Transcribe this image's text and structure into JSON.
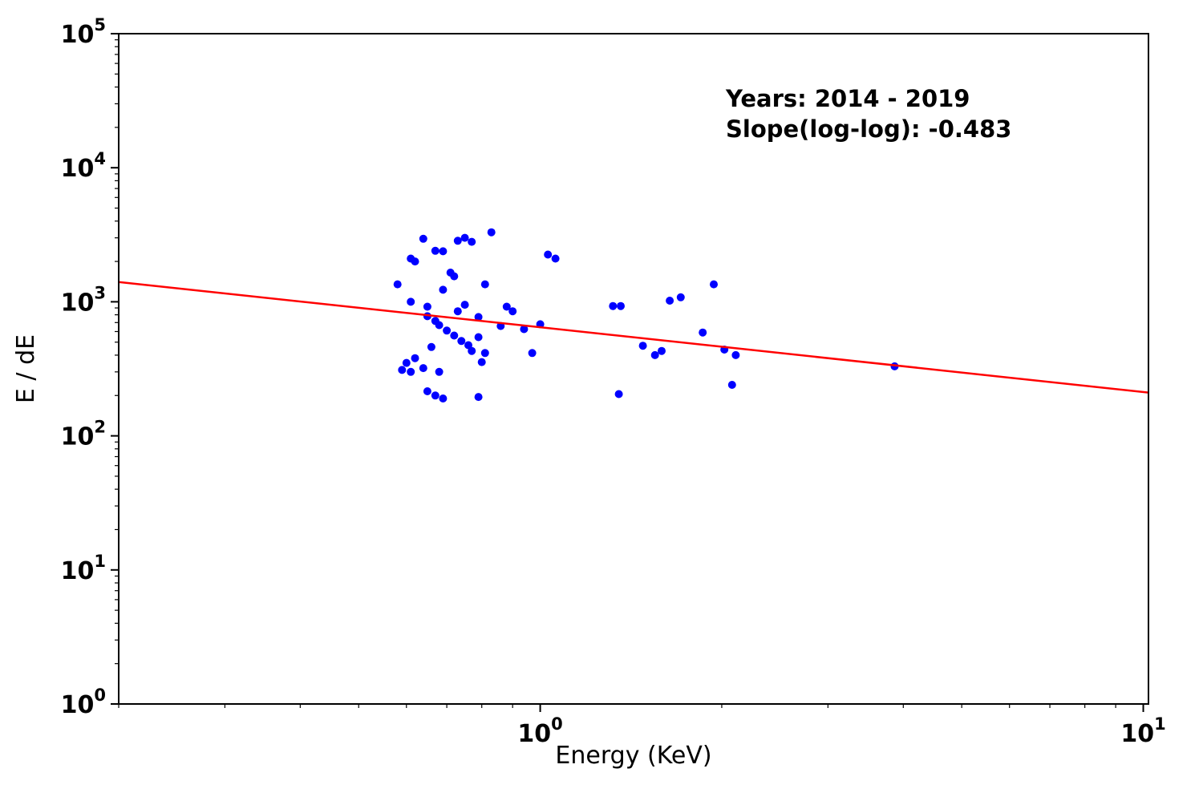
{
  "annotation": {
    "line1": "Years: 2014 - 2019",
    "line2": "Slope(log-log): -0.483"
  },
  "chart_data": {
    "type": "scatter",
    "title": "",
    "xlabel": "Energy (KeV)",
    "ylabel": "E / dE",
    "x_scale": "log",
    "y_scale": "log",
    "xlim": [
      0.2,
      10.2
    ],
    "ylim": [
      1,
      100000
    ],
    "x_ticks": [
      1,
      10
    ],
    "y_ticks": [
      1,
      10,
      100,
      1000,
      10000,
      100000
    ],
    "grid": false,
    "legend": "none",
    "marker_color": "#0000ff",
    "fit_line": {
      "color": "#ff0000",
      "slope_loglog": -0.483,
      "intercept_log10_at_x1": 2.81
    },
    "points": [
      [
        0.58,
        1350
      ],
      [
        0.61,
        2100
      ],
      [
        0.62,
        2000
      ],
      [
        0.64,
        2950
      ],
      [
        0.67,
        2400
      ],
      [
        0.69,
        2380
      ],
      [
        0.73,
        2850
      ],
      [
        0.75,
        3000
      ],
      [
        0.77,
        2800
      ],
      [
        0.83,
        3300
      ],
      [
        0.69,
        1230
      ],
      [
        0.71,
        1650
      ],
      [
        0.72,
        1550
      ],
      [
        0.81,
        1350
      ],
      [
        0.61,
        1000
      ],
      [
        0.65,
        920
      ],
      [
        0.75,
        950
      ],
      [
        0.73,
        850
      ],
      [
        0.65,
        780
      ],
      [
        0.67,
        720
      ],
      [
        0.68,
        670
      ],
      [
        0.7,
        610
      ],
      [
        0.72,
        560
      ],
      [
        0.66,
        460
      ],
      [
        0.62,
        380
      ],
      [
        0.6,
        350
      ],
      [
        0.64,
        320
      ],
      [
        0.59,
        310
      ],
      [
        0.61,
        300
      ],
      [
        0.65,
        215
      ],
      [
        0.67,
        200
      ],
      [
        0.69,
        190
      ],
      [
        0.79,
        195
      ],
      [
        0.68,
        300
      ],
      [
        0.74,
        510
      ],
      [
        0.76,
        475
      ],
      [
        0.77,
        430
      ],
      [
        0.79,
        545
      ],
      [
        0.8,
        355
      ],
      [
        0.81,
        415
      ],
      [
        0.79,
        770
      ],
      [
        0.86,
        660
      ],
      [
        0.88,
        920
      ],
      [
        0.9,
        850
      ],
      [
        0.94,
        625
      ],
      [
        0.97,
        415
      ],
      [
        1.0,
        680
      ],
      [
        1.03,
        2250
      ],
      [
        1.06,
        2100
      ],
      [
        1.32,
        930
      ],
      [
        1.36,
        930
      ],
      [
        1.35,
        205
      ],
      [
        1.48,
        470
      ],
      [
        1.55,
        400
      ],
      [
        1.59,
        430
      ],
      [
        1.64,
        1020
      ],
      [
        1.71,
        1080
      ],
      [
        1.86,
        590
      ],
      [
        1.94,
        1350
      ],
      [
        2.02,
        440
      ],
      [
        2.08,
        240
      ],
      [
        2.11,
        400
      ],
      [
        3.87,
        330
      ]
    ]
  }
}
